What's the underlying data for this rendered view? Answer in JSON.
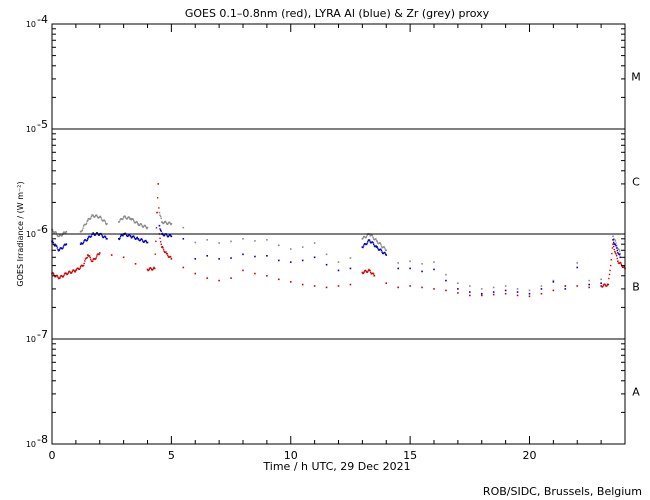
{
  "chart_data": {
    "type": "scatter",
    "title": "GOES 0.1–0.8nm (red), LYRA Al (blue) & Zr (grey) proxy",
    "xlabel": "Time / h UTC, 29 Dec 2021",
    "ylabel": "GOES Irradiance / (W m⁻²)",
    "credit": "ROB/SIDC, Brussels, Belgium",
    "y_scale": "log",
    "ylim": [
      1e-08,
      0.0001
    ],
    "xlim": [
      0,
      24
    ],
    "x_ticks": [
      0,
      5,
      10,
      15,
      20
    ],
    "x_tick_labels": [
      "0",
      "5",
      "10",
      "15",
      "20"
    ],
    "y_ticks": [
      {
        "value": 0.0001,
        "mantissa": "10",
        "exponent": "-4"
      },
      {
        "value": 1e-05,
        "mantissa": "10",
        "exponent": "-5"
      },
      {
        "value": 1e-06,
        "mantissa": "10",
        "exponent": "-6"
      },
      {
        "value": 1e-07,
        "mantissa": "10",
        "exponent": "-7"
      },
      {
        "value": 1e-08,
        "mantissa": "10",
        "exponent": "-8"
      }
    ],
    "class_lines": [
      1e-05,
      1e-06,
      1e-07
    ],
    "flare_classes": [
      {
        "label": "M",
        "value": 3.16e-05
      },
      {
        "label": "C",
        "value": 3.16e-06
      },
      {
        "label": "B",
        "value": 3.16e-07
      },
      {
        "label": "A",
        "value": 3.16e-08
      }
    ],
    "grid": false,
    "series": [
      {
        "color": "#d40000",
        "x": [
          0.0,
          0.3,
          0.6,
          1.0,
          1.3,
          1.5,
          1.7,
          2.0,
          2.5,
          3.0,
          3.5,
          4.0,
          4.3,
          4.4,
          4.45,
          4.5,
          4.6,
          4.8,
          5.0,
          5.5,
          6.0,
          6.5,
          7.0,
          7.5,
          8.0,
          8.5,
          9.0,
          9.5,
          10.0,
          10.5,
          11.0,
          11.5,
          12.0,
          12.5,
          13.0,
          13.3,
          13.5,
          14.0,
          14.5,
          15.0,
          15.5,
          16.0,
          16.5,
          17.0,
          17.5,
          18.0,
          18.5,
          19.0,
          19.5,
          20.0,
          20.5,
          21.0,
          21.5,
          22.0,
          22.5,
          23.0,
          23.3,
          23.5,
          23.7,
          24.0
        ],
        "y": [
          4.2e-07,
          3.8e-07,
          4.2e-07,
          4.5e-07,
          5e-07,
          6.3e-07,
          5.5e-07,
          6.6e-07,
          6.3e-07,
          6e-07,
          5.2e-07,
          4.6e-07,
          4.7e-07,
          1.6e-06,
          3e-06,
          1e-06,
          7.5e-07,
          6.5e-07,
          5.8e-07,
          4.8e-07,
          4.2e-07,
          3.8e-07,
          3.6e-07,
          3.8e-07,
          4.5e-07,
          4.2e-07,
          4e-07,
          3.7e-07,
          3.5e-07,
          3.3e-07,
          3.2e-07,
          3.1e-07,
          3.2e-07,
          3.3e-07,
          4.3e-07,
          4.5e-07,
          4e-07,
          3.4e-07,
          3.1e-07,
          3.2e-07,
          3.1e-07,
          3e-07,
          2.9e-07,
          2.75e-07,
          2.6e-07,
          2.6e-07,
          2.65e-07,
          2.7e-07,
          2.6e-07,
          2.55e-07,
          2.7e-07,
          2.9e-07,
          3.2e-07,
          3.2e-07,
          3.1e-07,
          3.2e-07,
          3.3e-07,
          8e-07,
          5.5e-07,
          4.7e-07
        ]
      },
      {
        "color": "#0000cc",
        "x": [
          0.0,
          0.3,
          0.6,
          1.2,
          1.5,
          1.7,
          2.0,
          2.3,
          2.8,
          3.0,
          3.3,
          3.6,
          4.0,
          4.5,
          4.6,
          5.0,
          5.5,
          6.0,
          6.5,
          7.0,
          7.5,
          8.0,
          8.5,
          9.0,
          9.5,
          10.0,
          10.5,
          11.0,
          11.5,
          12.0,
          12.5,
          13.0,
          13.3,
          13.6,
          14.0,
          14.5,
          15.0,
          15.5,
          16.0,
          16.5,
          17.0,
          17.5,
          18.0,
          18.5,
          19.0,
          19.5,
          20.0,
          20.5,
          21.0,
          21.5,
          22.0,
          22.5,
          23.0,
          23.5,
          23.8
        ],
        "y": [
          8.5e-07,
          7e-07,
          8e-07,
          8e-07,
          9e-07,
          1e-06,
          1e-06,
          9e-07,
          9e-07,
          1e-06,
          9.5e-07,
          9e-07,
          8.3e-07,
          1.2e-06,
          1e-06,
          9.5e-07,
          9e-07,
          5.8e-07,
          6.2e-07,
          5.8e-07,
          5.9e-07,
          6.4e-07,
          6.1e-07,
          6.2e-07,
          5.6e-07,
          5.4e-07,
          5.6e-07,
          6e-07,
          5.1e-07,
          4.5e-07,
          4.7e-07,
          7.5e-07,
          8.7e-07,
          7.5e-07,
          6.3e-07,
          4.7e-07,
          4.7e-07,
          4.4e-07,
          4.6e-07,
          3.6e-07,
          3e-07,
          2.8e-07,
          2.7e-07,
          2.8e-07,
          2.9e-07,
          2.8e-07,
          2.7e-07,
          3e-07,
          3.5e-07,
          3e-07,
          4.8e-07,
          3.3e-07,
          3.4e-07,
          8.8e-07,
          6e-07
        ]
      },
      {
        "color": "#8a8a8a",
        "x": [
          0.0,
          0.3,
          0.6,
          1.2,
          1.5,
          1.7,
          2.0,
          2.3,
          2.8,
          3.0,
          3.3,
          3.6,
          4.0,
          4.5,
          4.6,
          5.0,
          5.5,
          6.0,
          6.5,
          7.0,
          7.5,
          8.0,
          8.5,
          9.0,
          9.5,
          10.0,
          10.5,
          11.0,
          11.5,
          12.0,
          12.5,
          13.0,
          13.3,
          13.6,
          14.0,
          14.5,
          15.0,
          15.5,
          16.0,
          16.5,
          17.0,
          17.5,
          18.0,
          18.5,
          19.0,
          19.5,
          20.0,
          20.5,
          21.0,
          21.5,
          22.0,
          22.5,
          23.0,
          23.5,
          23.8
        ],
        "y": [
          1.1e-06,
          9.5e-07,
          1.05e-06,
          1.05e-06,
          1.35e-06,
          1.5e-06,
          1.45e-06,
          1.25e-06,
          1.3e-06,
          1.45e-06,
          1.4e-06,
          1.25e-06,
          1.15e-06,
          1.6e-06,
          1.3e-06,
          1.25e-06,
          1.15e-06,
          8.3e-07,
          8.8e-07,
          8.2e-07,
          8.5e-07,
          9e-07,
          8.6e-07,
          8.8e-07,
          7.8e-07,
          7.2e-07,
          7.5e-07,
          8.2e-07,
          6.4e-07,
          5.4e-07,
          5.9e-07,
          9e-07,
          1e-06,
          8.6e-07,
          7e-07,
          5.3e-07,
          5.5e-07,
          5.2e-07,
          5.4e-07,
          4.1e-07,
          3.4e-07,
          3.2e-07,
          3e-07,
          3.1e-07,
          3.2e-07,
          3e-07,
          2.9e-07,
          3.2e-07,
          3.6e-07,
          3.2e-07,
          5.3e-07,
          3.6e-07,
          3.7e-07,
          9.5e-07,
          6.5e-07
        ]
      }
    ]
  }
}
